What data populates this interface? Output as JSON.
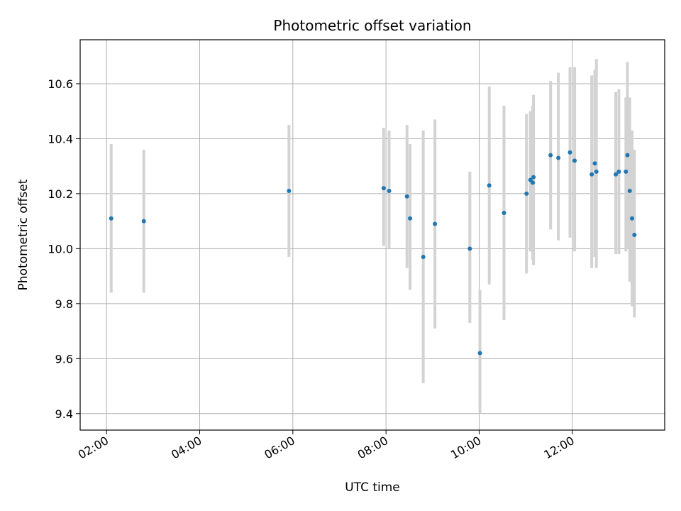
{
  "chart_data": {
    "type": "scatter",
    "title": "Photometric offset variation",
    "xlabel": "UTC time",
    "ylabel": "Photometric offset",
    "x_unit": "time of day (HH:MM, UTC)",
    "xlim": [
      "01:26",
      "13:59"
    ],
    "ylim": [
      9.34,
      10.76
    ],
    "x_ticks": [
      "02:00",
      "04:00",
      "06:00",
      "08:00",
      "10:00",
      "12:00"
    ],
    "y_ticks": [
      9.4,
      9.6,
      9.8,
      10.0,
      10.2,
      10.4,
      10.6
    ],
    "grid": true,
    "point_color": "#1f77b4",
    "errorbar_color": "#d3d3d3",
    "points": [
      {
        "x": "02:06",
        "y": 10.11,
        "lo": 9.84,
        "hi": 10.38
      },
      {
        "x": "02:48",
        "y": 10.1,
        "lo": 9.84,
        "hi": 10.36
      },
      {
        "x": "05:55",
        "y": 10.21,
        "lo": 9.97,
        "hi": 10.45
      },
      {
        "x": "07:57",
        "y": 10.22,
        "lo": 10.01,
        "hi": 10.44
      },
      {
        "x": "08:04",
        "y": 10.21,
        "lo": 10.0,
        "hi": 10.43
      },
      {
        "x": "08:27",
        "y": 10.19,
        "lo": 9.93,
        "hi": 10.45
      },
      {
        "x": "08:31",
        "y": 10.11,
        "lo": 9.85,
        "hi": 10.38
      },
      {
        "x": "08:48",
        "y": 9.97,
        "lo": 9.51,
        "hi": 10.43
      },
      {
        "x": "09:03",
        "y": 10.09,
        "lo": 9.71,
        "hi": 10.47
      },
      {
        "x": "09:48",
        "y": 10.0,
        "lo": 9.73,
        "hi": 10.28
      },
      {
        "x": "10:01",
        "y": 9.62,
        "lo": 9.4,
        "hi": 9.85
      },
      {
        "x": "10:13",
        "y": 10.23,
        "lo": 9.87,
        "hi": 10.59
      },
      {
        "x": "10:32",
        "y": 10.13,
        "lo": 9.74,
        "hi": 10.52
      },
      {
        "x": "11:01",
        "y": 10.2,
        "lo": 9.91,
        "hi": 10.49
      },
      {
        "x": "11:06",
        "y": 10.25,
        "lo": 9.99,
        "hi": 10.5
      },
      {
        "x": "11:09",
        "y": 10.24,
        "lo": 9.96,
        "hi": 10.52
      },
      {
        "x": "11:10",
        "y": 10.26,
        "lo": 9.94,
        "hi": 10.56
      },
      {
        "x": "11:32",
        "y": 10.34,
        "lo": 10.07,
        "hi": 10.61
      },
      {
        "x": "11:42",
        "y": 10.33,
        "lo": 10.03,
        "hi": 10.64
      },
      {
        "x": "11:57",
        "y": 10.35,
        "lo": 10.04,
        "hi": 10.66
      },
      {
        "x": "12:03",
        "y": 10.32,
        "lo": 9.99,
        "hi": 10.66
      },
      {
        "x": "12:25",
        "y": 10.27,
        "lo": 9.93,
        "hi": 10.63
      },
      {
        "x": "12:29",
        "y": 10.31,
        "lo": 9.97,
        "hi": 10.65
      },
      {
        "x": "12:31",
        "y": 10.28,
        "lo": 9.93,
        "hi": 10.69
      },
      {
        "x": "12:56",
        "y": 10.27,
        "lo": 9.98,
        "hi": 10.57
      },
      {
        "x": "13:00",
        "y": 10.28,
        "lo": 9.98,
        "hi": 10.58
      },
      {
        "x": "13:09",
        "y": 10.28,
        "lo": 9.99,
        "hi": 10.55
      },
      {
        "x": "13:11",
        "y": 10.34,
        "lo": 10.0,
        "hi": 10.68
      },
      {
        "x": "13:14",
        "y": 10.21,
        "lo": 9.88,
        "hi": 10.55
      },
      {
        "x": "13:17",
        "y": 10.11,
        "lo": 9.79,
        "hi": 10.43
      },
      {
        "x": "13:20",
        "y": 10.05,
        "lo": 9.75,
        "hi": 10.36
      }
    ]
  }
}
